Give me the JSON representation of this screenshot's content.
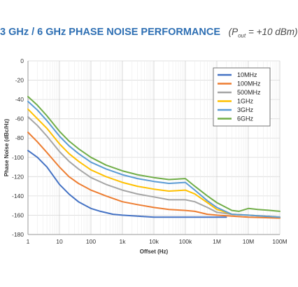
{
  "header": {
    "title": "3 GHz / 6 GHz PHASE NOISE PERFORMANCE",
    "cond_prefix": "(P",
    "cond_sub": "out",
    "cond_suffix": " = +10 dBm)"
  },
  "chart_data": {
    "type": "line",
    "xlabel": "Offset (Hz)",
    "ylabel": "Phase Noise (dBc/Hz)",
    "xscale": "log",
    "xlim": [
      1,
      100000000
    ],
    "ylim": [
      -180,
      0
    ],
    "x_ticks": [
      1,
      10,
      100,
      1000,
      10000,
      100000,
      1000000,
      10000000,
      100000000
    ],
    "x_tick_labels": [
      "1",
      "10",
      "100",
      "1k",
      "10k",
      "100k",
      "1M",
      "10M",
      "100M"
    ],
    "y_ticks": [
      0,
      -20,
      -40,
      -60,
      -80,
      -100,
      -120,
      -140,
      -160,
      -180
    ],
    "y_tick_labels": [
      "0",
      "-20",
      "-40",
      "-60",
      "-80",
      "-100",
      "-120",
      "-140",
      "-160",
      "-180"
    ],
    "grid": true,
    "legend": "top-right",
    "series": [
      {
        "name": "10MHz",
        "color": "#4472c4",
        "x": [
          1,
          2,
          4,
          10,
          20,
          40,
          100,
          200,
          500,
          1000,
          3000,
          10000,
          30000,
          100000,
          200000,
          1000000,
          2000000
        ],
        "y": [
          -93,
          -100,
          -110,
          -128,
          -138,
          -146,
          -153,
          -156,
          -159,
          -160,
          -161,
          -162,
          -162,
          -162,
          -162,
          -162,
          -162
        ]
      },
      {
        "name": "100MHz",
        "color": "#ed7d31",
        "x": [
          1,
          2,
          4,
          10,
          20,
          40,
          100,
          300,
          1000,
          3000,
          10000,
          30000,
          100000,
          200000,
          500000,
          1000000,
          3000000,
          10000000,
          100000000
        ],
        "y": [
          -74,
          -84,
          -95,
          -110,
          -120,
          -127,
          -134,
          -140,
          -146,
          -149,
          -152,
          -154,
          -155,
          -156,
          -159,
          -160,
          -161,
          -162,
          -163
        ]
      },
      {
        "name": "500MHz",
        "color": "#a5a5a5",
        "x": [
          1,
          2,
          4,
          10,
          20,
          40,
          100,
          300,
          1000,
          3000,
          10000,
          30000,
          100000,
          200000,
          500000,
          1000000,
          3000000,
          10000000,
          100000000
        ],
        "y": [
          -58,
          -67,
          -78,
          -94,
          -104,
          -112,
          -121,
          -128,
          -134,
          -138,
          -141,
          -144,
          -144,
          -146,
          -152,
          -157,
          -159,
          -160,
          -162
        ]
      },
      {
        "name": "1GHz",
        "color": "#ffc000",
        "x": [
          1,
          2,
          4,
          10,
          20,
          40,
          100,
          300,
          1000,
          3000,
          10000,
          30000,
          100000,
          200000,
          500000,
          1000000,
          3000000,
          10000000,
          100000000
        ],
        "y": [
          -50,
          -60,
          -70,
          -86,
          -96,
          -104,
          -113,
          -120,
          -126,
          -130,
          -133,
          -135,
          -134,
          -138,
          -147,
          -154,
          -159,
          -160,
          -162
        ]
      },
      {
        "name": "3GHz",
        "color": "#5b9bd5",
        "x": [
          1,
          2,
          4,
          10,
          20,
          40,
          100,
          300,
          1000,
          3000,
          10000,
          30000,
          100000,
          200000,
          500000,
          1000000,
          3000000,
          10000000,
          100000000
        ],
        "y": [
          -42,
          -51,
          -62,
          -78,
          -88,
          -96,
          -105,
          -112,
          -118,
          -122,
          -125,
          -127,
          -126,
          -134,
          -145,
          -152,
          -159,
          -160,
          -162
        ]
      },
      {
        "name": "6GHz",
        "color": "#70ad47",
        "x": [
          1,
          2,
          4,
          10,
          20,
          40,
          100,
          300,
          1000,
          3000,
          10000,
          30000,
          100000,
          200000,
          500000,
          1000000,
          3000000,
          5000000,
          10000000,
          20000000,
          50000000,
          100000000
        ],
        "y": [
          -37,
          -46,
          -57,
          -73,
          -83,
          -91,
          -100,
          -108,
          -114,
          -118,
          -121,
          -123,
          -122,
          -130,
          -140,
          -147,
          -155,
          -156,
          -153,
          -154,
          -155,
          -156
        ]
      }
    ]
  }
}
